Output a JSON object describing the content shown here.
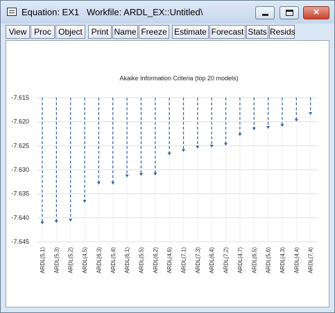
{
  "window": {
    "title": "Equation: EX1   Workfile: ARDL_EX::Untitled\\",
    "icon": "equation-window-icon",
    "controls": {
      "minimize": "minimize-icon",
      "maximize": "maximize-icon",
      "close": "×"
    }
  },
  "toolbar": {
    "buttons": [
      "View",
      "Proc",
      "Object",
      "Print",
      "Name",
      "Freeze",
      "Estimate",
      "Forecast",
      "Stats",
      "Resids"
    ]
  },
  "chart_data": {
    "type": "scatter",
    "title": "Akaike Information Criteria (top 20 models)",
    "categories": [
      "ARDL(5,1)",
      "ARDL(5,3)",
      "ARDL(5,2)",
      "ARDL(4,5)",
      "ARDL(6,3)",
      "ARDL(5,4)",
      "ARDL(6,1)",
      "ARDL(5,5)",
      "ARDL(6,2)",
      "ARDL(4,6)",
      "ARDL(7,1)",
      "ARDL(7,3)",
      "ARDL(6,4)",
      "ARDL(7,2)",
      "ARDL(4,7)",
      "ARDL(6,5)",
      "ARDL(5,6)",
      "ARDL(4,3)",
      "ARDL(4,4)",
      "ARDL(7,4)"
    ],
    "values": [
      -7.6414,
      -7.6411,
      -7.6408,
      -7.6369,
      -7.6331,
      -7.6331,
      -7.6316,
      -7.6313,
      -7.6312,
      -7.627,
      -7.6263,
      -7.6256,
      -7.6254,
      -7.625,
      -7.623,
      -7.6218,
      -7.6215,
      -7.6211,
      -7.62,
      -7.6186
    ],
    "ylim": [
      -7.645,
      -7.615
    ],
    "yticks": [
      "-7.615",
      "-7.620",
      "-7.625",
      "-7.630",
      "-7.635",
      "-7.640",
      "-7.645"
    ],
    "ytick_values": [
      -7.615,
      -7.62,
      -7.625,
      -7.63,
      -7.635,
      -7.64,
      -7.645
    ],
    "grid": true,
    "line_color": "#2f5e9e",
    "grid_color": "#d9dde3"
  }
}
